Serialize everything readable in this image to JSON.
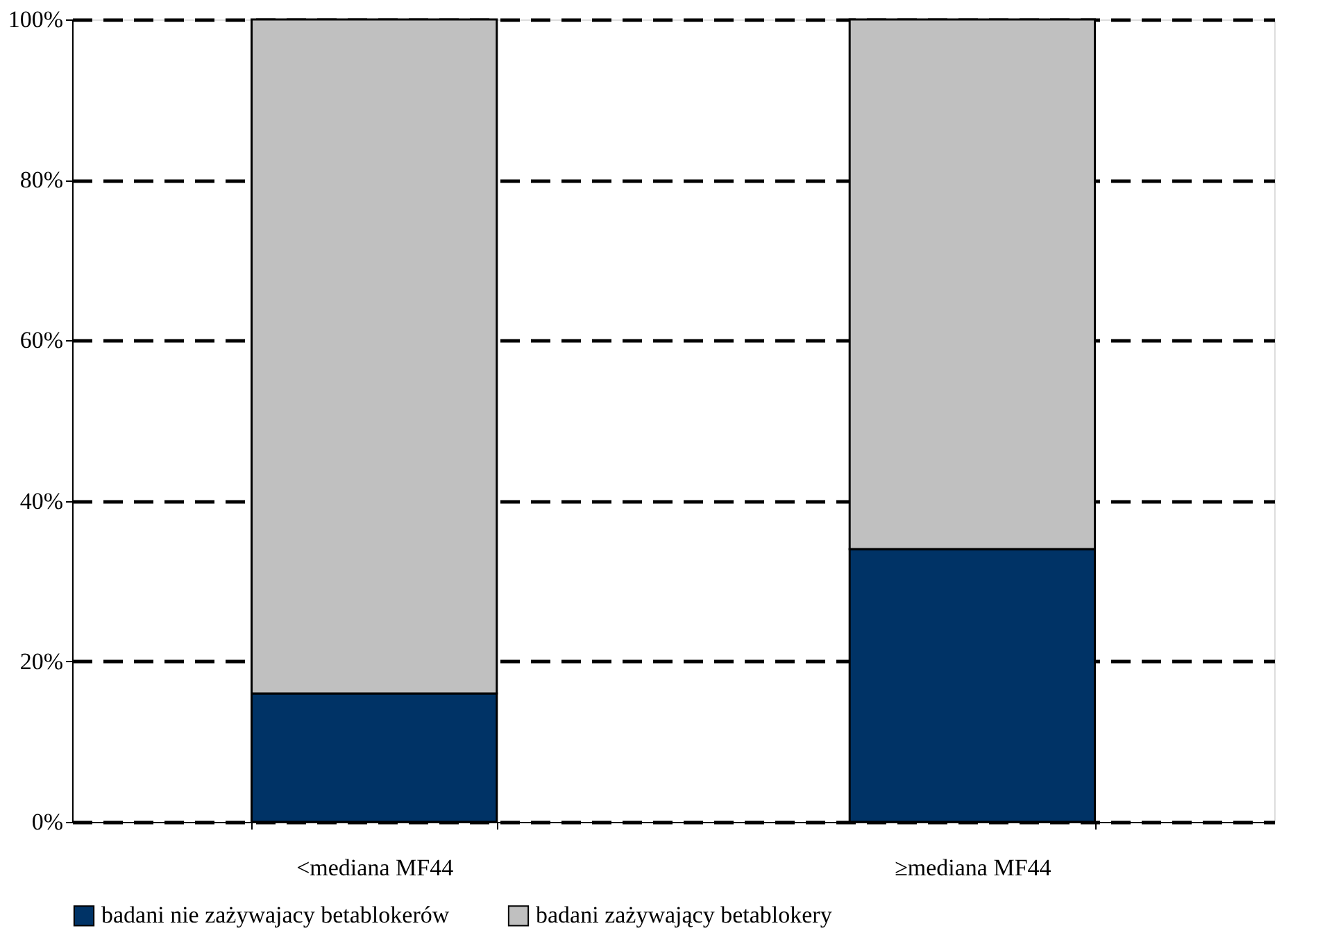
{
  "chart_data": {
    "type": "bar",
    "stacked": true,
    "categories": [
      "<mediana MF44",
      "≥mediana MF44"
    ],
    "series": [
      {
        "name": "badani nie zażywajacy betablokerów",
        "color": "#003366",
        "values": [
          16,
          34
        ]
      },
      {
        "name": "badani zażywający betablokery",
        "color": "#c0c0c0",
        "values": [
          84,
          66
        ]
      }
    ],
    "ylim": [
      0,
      100
    ],
    "yticks": [
      {
        "value": 0,
        "label": "0%"
      },
      {
        "value": 20,
        "label": "20%"
      },
      {
        "value": 40,
        "label": "40%"
      },
      {
        "value": 60,
        "label": "60%"
      },
      {
        "value": 80,
        "label": "80%"
      },
      {
        "value": 100,
        "label": "100%"
      }
    ],
    "grid": "y",
    "legend": "bottom"
  }
}
